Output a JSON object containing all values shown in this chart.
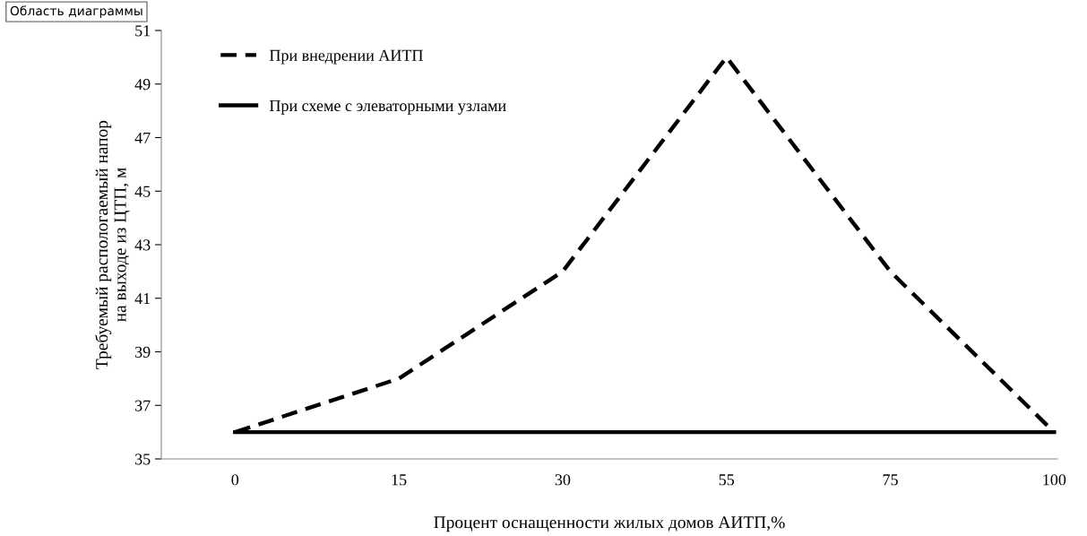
{
  "chart_data": {
    "type": "line",
    "xlabel": "Процент оснащенности жилых домов АИТП,%",
    "ylabel": "Требуемый распологаемый напор\nна выходе из ЦТП, м",
    "categories": [
      "0",
      "15",
      "30",
      "55",
      "75",
      "100"
    ],
    "series": [
      {
        "name": "При внедрении АИТП",
        "color": "#000000",
        "line_style": "dashed",
        "values": [
          36,
          38,
          42,
          50,
          42,
          36
        ]
      },
      {
        "name": "При схеме с элеваторными узлами",
        "color": "#000000",
        "line_style": "solid",
        "values": [
          36,
          36,
          36,
          36,
          36,
          36
        ]
      }
    ],
    "ylim": [
      35,
      51
    ],
    "yticks": [
      35,
      37,
      39,
      41,
      43,
      45,
      47,
      49,
      51
    ],
    "grid": false,
    "legend": "top left",
    "marker": "none",
    "annotations": [
      "Область диаграммы"
    ]
  }
}
